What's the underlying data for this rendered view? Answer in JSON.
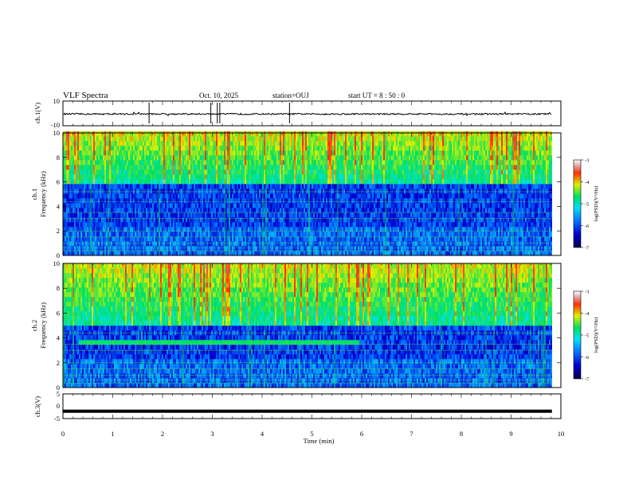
{
  "header": {
    "title": "VLF Spectra",
    "date": "Oct. 10, 2025",
    "station": "station=OUJ",
    "start_ut": "start UT =  8 : 50 : 0"
  },
  "chart_data": [
    {
      "type": "line",
      "id": "ch1-waveform",
      "ylabel": "ch.1(V)",
      "ylim": [
        -10,
        10
      ],
      "yticks": [
        "10",
        "-10"
      ],
      "baseline_v": -0.5,
      "noise_amplitude_v": 0.6
    },
    {
      "type": "heatmap",
      "id": "ch1-spectrogram",
      "ylabel_line1": "ch.1",
      "ylabel_line2": "Frequency (kHz)",
      "ylim": [
        0,
        10
      ],
      "yticks": [
        "0",
        "2",
        "4",
        "6",
        "8",
        "10"
      ],
      "colorbar": {
        "label": "log(PSD)(V²/Hz)",
        "range": [
          -7,
          -3
        ],
        "ticks": [
          "-3",
          "-4",
          "-5",
          "-6",
          "-7"
        ]
      }
    },
    {
      "type": "heatmap",
      "id": "ch2-spectrogram",
      "ylabel_line1": "ch.2",
      "ylabel_line2": "Frequency (kHz)",
      "ylim": [
        0,
        10
      ],
      "yticks": [
        "0",
        "2",
        "4",
        "6",
        "8",
        "10"
      ],
      "colorbar": {
        "label": "log(PSD)(V²/Hz)",
        "range": [
          -7,
          -3
        ],
        "ticks": [
          "-3",
          "-4",
          "-5",
          "-6",
          "-7"
        ]
      },
      "band_khz": [
        3.1,
        3.6
      ],
      "band_time_min": [
        0.3,
        5.95
      ]
    },
    {
      "type": "line",
      "id": "ch3-waveform",
      "ylabel": "ch.3(V)",
      "ylim": [
        -5,
        5
      ],
      "yticks": [
        "5",
        "0",
        "-5"
      ],
      "baseline_v": -2.0
    }
  ],
  "xaxis": {
    "label": "Time (min)",
    "range": [
      0,
      10
    ],
    "ticks": [
      "0",
      "1",
      "2",
      "3",
      "4",
      "5",
      "6",
      "7",
      "8",
      "9",
      "10"
    ],
    "data_end": 9.82
  }
}
